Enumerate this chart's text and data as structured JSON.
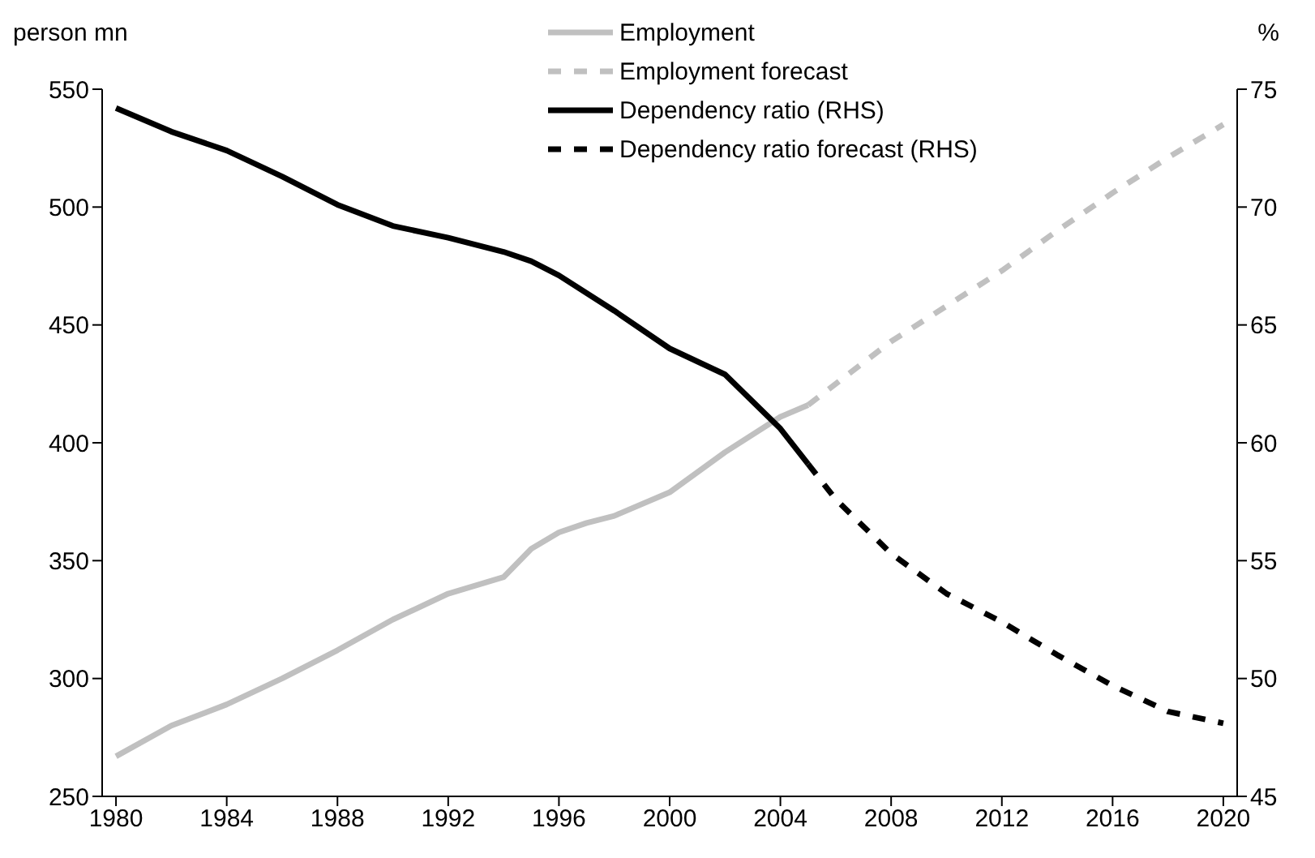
{
  "chart_data": {
    "type": "line",
    "ylabel": "person mn",
    "y2label": "%",
    "xlim": [
      1979.5,
      2020.5
    ],
    "xticks": [
      1980,
      1984,
      1988,
      1992,
      1996,
      2000,
      2004,
      2008,
      2012,
      2016,
      2020
    ],
    "ylim": [
      250,
      550
    ],
    "yticks": [
      250,
      300,
      350,
      400,
      450,
      500,
      550
    ],
    "y2lim": [
      45,
      75
    ],
    "y2ticks": [
      45,
      50,
      55,
      60,
      65,
      70,
      75
    ],
    "grid": false,
    "legend": "top",
    "marker": "none",
    "series": [
      {
        "name": "Employment",
        "color": "#c0c0c0",
        "line_style": "solid",
        "x": [
          1980,
          1982,
          1984,
          1986,
          1988,
          1990,
          1992,
          1994,
          1995,
          1996,
          1997,
          1998,
          2000,
          2002,
          2004,
          2005
        ],
        "values": [
          267,
          280,
          289,
          300,
          312,
          325,
          336,
          343,
          355,
          362,
          366,
          369,
          379,
          396,
          411,
          416
        ]
      },
      {
        "name": "Employment forecast",
        "color": "#c0c0c0",
        "line_style": "dashed",
        "x": [
          2005,
          2008,
          2010,
          2012,
          2014,
          2016,
          2018,
          2020
        ],
        "values": [
          416,
          443,
          458,
          473,
          490,
          506,
          521,
          535
        ]
      },
      {
        "name": "Dependency ratio (RHS)",
        "color": "#000000",
        "line_style": "solid",
        "axis": "y2",
        "x": [
          1980,
          1982,
          1984,
          1986,
          1988,
          1990,
          1992,
          1994,
          1995,
          1996,
          1998,
          2000,
          2002,
          2004,
          2005
        ],
        "values": [
          74.2,
          73.2,
          72.4,
          71.3,
          70.1,
          69.2,
          68.7,
          68.1,
          67.7,
          67.1,
          65.6,
          64.0,
          62.9,
          60.6,
          59.1
        ]
      },
      {
        "name": "Dependency ratio forecast (RHS)",
        "color": "#000000",
        "line_style": "dashed",
        "axis": "y2",
        "x": [
          2005,
          2006,
          2008,
          2010,
          2012,
          2014,
          2016,
          2018,
          2020
        ],
        "values": [
          59.1,
          57.6,
          55.3,
          53.6,
          52.4,
          51.0,
          49.7,
          48.6,
          48.1
        ]
      }
    ]
  }
}
